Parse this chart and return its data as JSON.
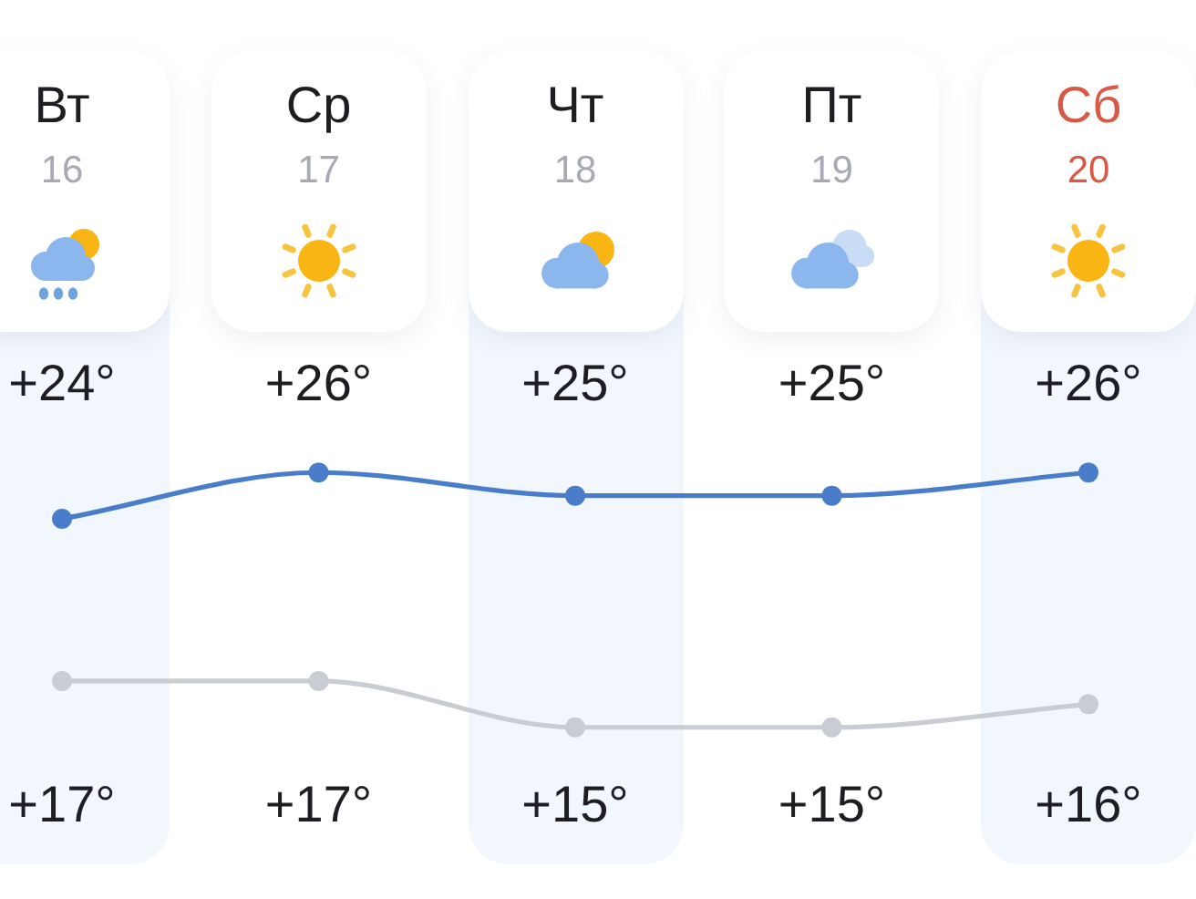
{
  "chart_data": {
    "type": "line",
    "categories": [
      "Вт\n16",
      "Ср\n17",
      "Чт\n18",
      "Пт\n19",
      "Сб\n20"
    ],
    "series": [
      {
        "color": "#4a7dc9",
        "values": [
          24,
          26,
          25,
          25,
          26
        ],
        "value_labels": [
          "+24°",
          "+26°",
          "+25°",
          "+25°",
          "+26°"
        ]
      },
      {
        "color": "#c9cdd3",
        "values": [
          17,
          17,
          15,
          15,
          16
        ],
        "value_labels": [
          "+17°",
          "+17°",
          "+15°",
          "+15°",
          "+16°"
        ]
      }
    ],
    "marker": "circle",
    "line_style": "solid"
  }
}
